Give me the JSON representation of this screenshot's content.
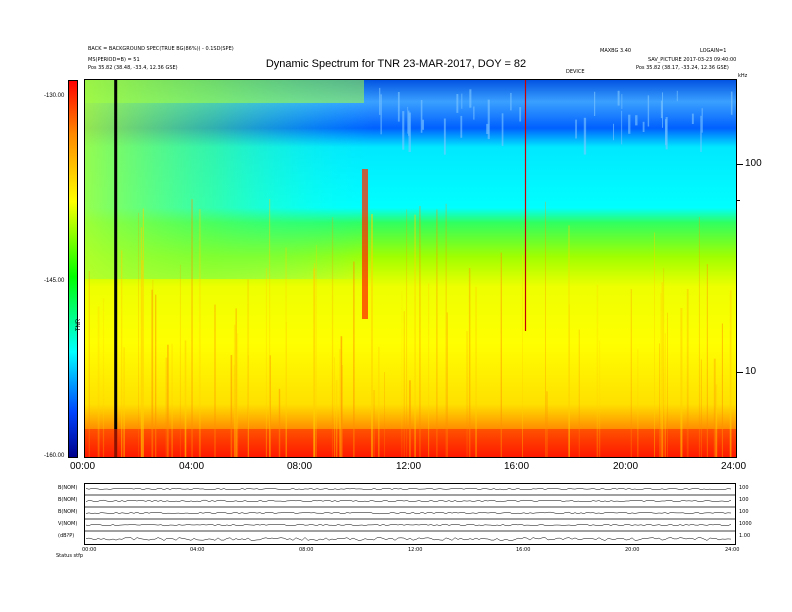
{
  "header": {
    "title": "Dynamic Spectrum for TNR 23-MAR-2017, DOY = 82",
    "left_line1": "BACK = BACKGROUND SPEC(TRUE BG(86%)) - 0.1SD(SPE)",
    "left_line2": "MS(PERIOD=B) = 51",
    "left_line3": "Pos  35.82 (38.48, -33.4, 12.36 GSE)",
    "right_top": "MAXBG 3.40",
    "right_top2": "LOGAIN=1",
    "right_line2": "SAV_PICTURE 2017-03-23 09:40:00",
    "right_line3": "Pos  35.82 (38.17, -33.24, 12.36 GSE)",
    "marker_label": "DEVICE",
    "khz_label": "kHz"
  },
  "colorbar": {
    "ticks": [
      "-130.00",
      "-145.00",
      "-160.00"
    ],
    "label": "TNR"
  },
  "chart_data": {
    "type": "heatmap",
    "title": "Dynamic Spectrum for TNR 23-MAR-2017, DOY = 82",
    "x_axis": {
      "label": "",
      "range": [
        "00:00",
        "24:00"
      ],
      "ticks": [
        "00:00",
        "04:00",
        "08:00",
        "12:00",
        "16:00",
        "20:00",
        "24:00"
      ]
    },
    "y_axis": {
      "label": "",
      "scale": "log",
      "unit": "kHz",
      "range": [
        4,
        245
      ],
      "ticks": [
        "100",
        "10"
      ]
    },
    "color_scale": {
      "min": -160.0,
      "max": -130.0,
      "colors": [
        "#00008b",
        "#0044ff",
        "#00ffff",
        "#00ff00",
        "#ffff00",
        "#ff8800",
        "#ff0000"
      ]
    },
    "features": [
      {
        "type": "vertical_line",
        "time": "01:10",
        "color": "#000000",
        "description": "data gap"
      },
      {
        "type": "vertical_line",
        "time": "16:15",
        "color": "#cc0000",
        "description": "marker"
      },
      {
        "type": "bright_band",
        "freq_khz_range": [
          4,
          6
        ],
        "color_level": "red"
      },
      {
        "type": "enhancement",
        "time_range": [
          "10:10",
          "10:30"
        ],
        "freq_khz_range": [
          30,
          100
        ],
        "color_level": "red"
      }
    ],
    "levels_by_frequency": [
      {
        "freq_khz": 200,
        "level_dB": -132
      },
      {
        "freq_khz": 100,
        "level_dB": -138
      },
      {
        "freq_khz": 50,
        "level_dB": -143
      },
      {
        "freq_khz": 20,
        "level_dB": -150
      },
      {
        "freq_khz": 8,
        "level_dB": -152
      },
      {
        "freq_khz": 5,
        "level_dB": -157
      }
    ]
  },
  "panels": {
    "left_labels": [
      "B(NOM)",
      "B(NOM)",
      "B(NOM)",
      "V(NOM)",
      "(dB?P)"
    ],
    "right_labels": [
      "100",
      "100",
      "100",
      "1000",
      "1.00"
    ],
    "footer_left": "Status  stfp",
    "x_ticks": [
      "00:00",
      "04:00",
      "08:00",
      "12:00",
      "16:00",
      "20:00",
      "24:00"
    ]
  },
  "colors": {
    "frame": "#000000",
    "dark_blue": "#00008b",
    "cyan": "#00ffff",
    "green": "#00ff00",
    "yellow": "#ffff00",
    "red": "#ff0000"
  }
}
